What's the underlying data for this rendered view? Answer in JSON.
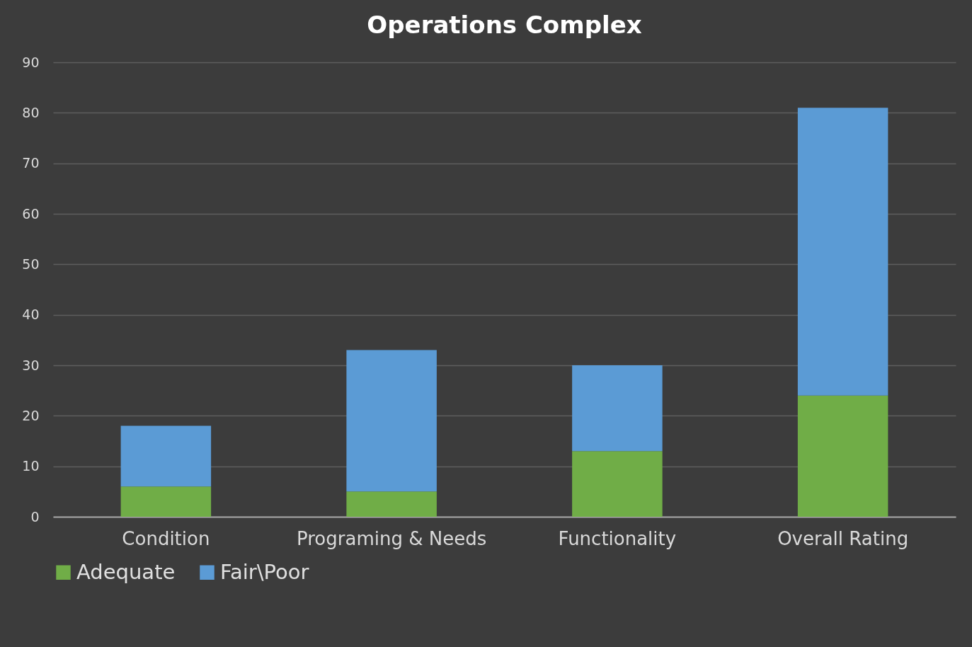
{
  "chart_data": {
    "type": "bar",
    "title": "Operations Complex",
    "categories": [
      "Condition",
      "Programing & Needs",
      "Functionality",
      "Overall Rating"
    ],
    "series": [
      {
        "name": "Adequate",
        "color": "#70ad47",
        "values": [
          6,
          5,
          13,
          24
        ]
      },
      {
        "name": "Fair\\Poor",
        "color": "#5b9bd5",
        "values": [
          12,
          28,
          17,
          57
        ]
      }
    ],
    "stacked": true,
    "ylim": [
      0,
      90
    ],
    "yticks": [
      0,
      10,
      20,
      30,
      40,
      50,
      60,
      70,
      80,
      90
    ],
    "grid": "y",
    "legend": "bottom"
  }
}
